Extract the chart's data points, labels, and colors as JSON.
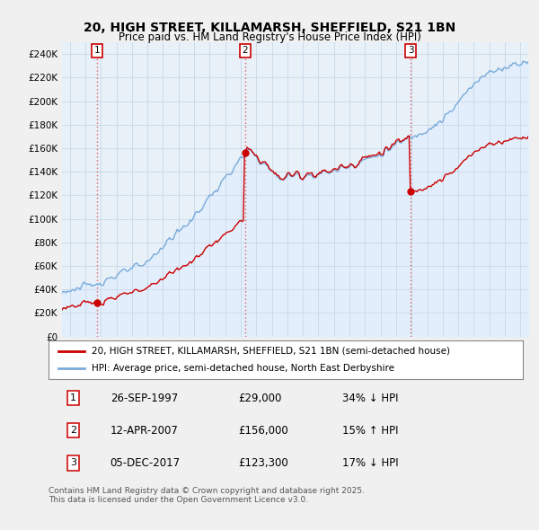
{
  "title_line1": "20, HIGH STREET, KILLAMARSH, SHEFFIELD, S21 1BN",
  "title_line2": "Price paid vs. HM Land Registry's House Price Index (HPI)",
  "property_color": "#cc0000",
  "hpi_color": "#7aabdb",
  "hpi_fill_color": "#ddeeff",
  "background_color": "#f0f0f0",
  "plot_bg_color": "#e8f0f8",
  "grid_color": "#c8d8e8",
  "vline_color": "#e06060",
  "sale1_price": 29000,
  "sale1_x": 1997.74,
  "sale2_price": 156000,
  "sale2_x": 2007.28,
  "sale3_price": 123300,
  "sale3_x": 2017.93,
  "legend_property": "20, HIGH STREET, KILLAMARSH, SHEFFIELD, S21 1BN (semi-detached house)",
  "legend_hpi": "HPI: Average price, semi-detached house, North East Derbyshire",
  "footnote": "Contains HM Land Registry data © Crown copyright and database right 2025.\nThis data is licensed under the Open Government Licence v3.0.",
  "xmin": 1995.5,
  "xmax": 2025.5,
  "ylim": [
    0,
    250000
  ],
  "yticks": [
    0,
    20000,
    40000,
    60000,
    80000,
    100000,
    120000,
    140000,
    160000,
    180000,
    200000,
    220000,
    240000
  ],
  "ytick_labels": [
    "£0",
    "£20K",
    "£40K",
    "£60K",
    "£80K",
    "£100K",
    "£120K",
    "£140K",
    "£160K",
    "£180K",
    "£200K",
    "£220K",
    "£240K"
  ]
}
